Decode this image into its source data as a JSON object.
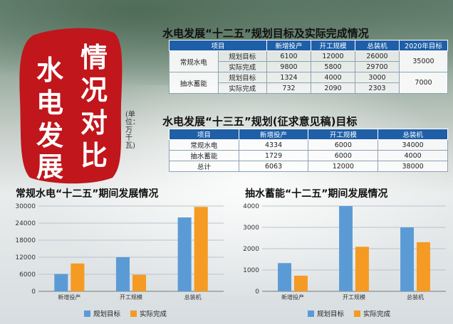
{
  "seal": {
    "chars": [
      "情",
      "况",
      "对",
      "比",
      "水",
      "电",
      "发",
      "展"
    ]
  },
  "unit_note": "(单位：万千瓦)",
  "table1": {
    "title": "水电发展“十二五”规划目标及实际完成情况",
    "headers": [
      "项目",
      "",
      "新增投产",
      "开工规模",
      "总装机",
      "2020年目标"
    ],
    "groups": [
      {
        "name": "常规水电",
        "rows": [
          [
            "规划目标",
            "6100",
            "12000",
            "26000"
          ],
          [
            "实际完成",
            "9800",
            "5800",
            "29700"
          ]
        ],
        "target2020": "35000"
      },
      {
        "name": "抽水蓄能",
        "rows": [
          [
            "规划目标",
            "1324",
            "4000",
            "3000"
          ],
          [
            "实际完成",
            "732",
            "2090",
            "2303"
          ]
        ],
        "target2020": "7000"
      }
    ]
  },
  "table2": {
    "title": "水电发展“十三五”规划(征求意见稿)目标",
    "headers": [
      "项目",
      "新增投产",
      "开工规模",
      "总装机"
    ],
    "rows": [
      [
        "常规水电",
        "4334",
        "6000",
        "34000"
      ],
      [
        "抽水蓄能",
        "1729",
        "6000",
        "4000"
      ],
      [
        "总计",
        "6063",
        "12000",
        "38000"
      ]
    ]
  },
  "colors": {
    "planned": "#5b9bd5",
    "actual": "#f59a23",
    "header": "#1e5fa8",
    "seal": "#c0161c"
  },
  "chart_data": [
    {
      "type": "bar",
      "title": "常规水电“十二五”期间发展情况",
      "categories": [
        "新增投产",
        "开工规模",
        "总装机"
      ],
      "series": [
        {
          "name": "规划目标",
          "values": [
            6100,
            12000,
            26000
          ]
        },
        {
          "name": "实际完成",
          "values": [
            9800,
            5800,
            29700
          ]
        }
      ],
      "ylim": [
        0,
        30000
      ],
      "yticks": [
        "0",
        "6000",
        "12000",
        "18000",
        "24000",
        "30000"
      ],
      "grid": true,
      "legend": "bottom"
    },
    {
      "type": "bar",
      "title": "抽水蓄能“十二五”期间发展情况",
      "categories": [
        "新增投产",
        "开工规模",
        "总装机"
      ],
      "series": [
        {
          "name": "规划目标",
          "values": [
            1324,
            4000,
            3000
          ]
        },
        {
          "name": "实际完成",
          "values": [
            732,
            2090,
            2303
          ]
        }
      ],
      "ylim": [
        0,
        4000
      ],
      "yticks": [
        "0",
        "1000",
        "2000",
        "3000",
        "4000"
      ],
      "grid": true,
      "legend": "bottom"
    }
  ]
}
